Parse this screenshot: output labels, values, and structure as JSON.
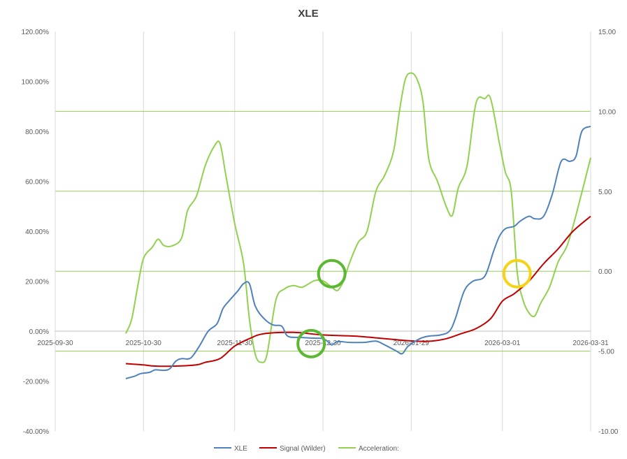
{
  "chart_data": {
    "type": "line",
    "title": "XLE",
    "x_type": "date",
    "xlim": [
      "2025-09-30",
      "2026-03-31"
    ],
    "x_ticks": [
      "2025-09-30",
      "2025-10-30",
      "2025-11-30",
      "2025-12-30",
      "2026-01-29",
      "2026-03-01",
      "2026-03-31"
    ],
    "y_left": {
      "min": -0.4,
      "max": 1.2,
      "ticks": [
        "-40.00%",
        "-20.00%",
        "0.00%",
        "20.00%",
        "40.00%",
        "60.00%",
        "80.00%",
        "100.00%",
        "120.00%"
      ]
    },
    "y_right": {
      "min": -10,
      "max": 15,
      "ticks": [
        "-10.00",
        "-5.00",
        "0.00",
        "5.00",
        "10.00",
        "15.00"
      ],
      "gridlines": [
        -5,
        0,
        5,
        10
      ]
    },
    "grid": true,
    "legend_position": "bottom",
    "series": [
      {
        "name": "XLE",
        "axis": "left",
        "color": "#4f81bd",
        "points": [
          [
            "2025-10-24",
            -0.19
          ],
          [
            "2025-10-27",
            -0.18
          ],
          [
            "2025-10-29",
            -0.17
          ],
          [
            "2025-11-01",
            -0.165
          ],
          [
            "2025-11-03",
            -0.155
          ],
          [
            "2025-11-06",
            -0.157
          ],
          [
            "2025-11-08",
            -0.15
          ],
          [
            "2025-11-10",
            -0.12
          ],
          [
            "2025-11-12",
            -0.11
          ],
          [
            "2025-11-15",
            -0.108
          ],
          [
            "2025-11-18",
            -0.06
          ],
          [
            "2025-11-21",
            0.0
          ],
          [
            "2025-11-24",
            0.03
          ],
          [
            "2025-11-26",
            0.09
          ],
          [
            "2025-11-28",
            0.12
          ],
          [
            "2025-12-01",
            0.16
          ],
          [
            "2025-12-03",
            0.19
          ],
          [
            "2025-12-05",
            0.19
          ],
          [
            "2025-12-07",
            0.1
          ],
          [
            "2025-12-10",
            0.05
          ],
          [
            "2025-12-13",
            0.025
          ],
          [
            "2025-12-16",
            0.02
          ],
          [
            "2025-12-18",
            -0.02
          ],
          [
            "2025-12-22",
            -0.025
          ],
          [
            "2025-12-27",
            -0.028
          ],
          [
            "2025-12-30",
            -0.03
          ],
          [
            "2026-01-01",
            -0.045
          ],
          [
            "2026-01-02",
            -0.055
          ],
          [
            "2026-01-04",
            -0.042
          ],
          [
            "2026-01-08",
            -0.045
          ],
          [
            "2026-01-13",
            -0.045
          ],
          [
            "2026-01-17",
            -0.04
          ],
          [
            "2026-01-20",
            -0.055
          ],
          [
            "2026-01-24",
            -0.08
          ],
          [
            "2026-01-26",
            -0.09
          ],
          [
            "2026-01-28",
            -0.06
          ],
          [
            "2026-02-01",
            -0.03
          ],
          [
            "2026-02-04",
            -0.02
          ],
          [
            "2026-02-08",
            -0.015
          ],
          [
            "2026-02-11",
            0.0
          ],
          [
            "2026-02-13",
            0.05
          ],
          [
            "2026-02-16",
            0.16
          ],
          [
            "2026-02-19",
            0.2
          ],
          [
            "2026-02-23",
            0.22
          ],
          [
            "2026-02-26",
            0.32
          ],
          [
            "2026-02-28",
            0.38
          ],
          [
            "2026-03-02",
            0.41
          ],
          [
            "2026-03-05",
            0.42
          ],
          [
            "2026-03-07",
            0.44
          ],
          [
            "2026-03-10",
            0.46
          ],
          [
            "2026-03-12",
            0.45
          ],
          [
            "2026-03-15",
            0.46
          ],
          [
            "2026-03-18",
            0.55
          ],
          [
            "2026-03-21",
            0.68
          ],
          [
            "2026-03-24",
            0.68
          ],
          [
            "2026-03-26",
            0.7
          ],
          [
            "2026-03-28",
            0.8
          ],
          [
            "2026-03-31",
            0.82
          ]
        ]
      },
      {
        "name": "Signal (Wilder)",
        "axis": "left",
        "color": "#c00000",
        "points": [
          [
            "2025-10-24",
            -0.13
          ],
          [
            "2025-10-30",
            -0.135
          ],
          [
            "2025-11-03",
            -0.14
          ],
          [
            "2025-11-10",
            -0.14
          ],
          [
            "2025-11-17",
            -0.135
          ],
          [
            "2025-11-20",
            -0.125
          ],
          [
            "2025-11-25",
            -0.11
          ],
          [
            "2025-11-30",
            -0.06
          ],
          [
            "2025-12-05",
            -0.03
          ],
          [
            "2025-12-10",
            -0.01
          ],
          [
            "2025-12-20",
            -0.005
          ],
          [
            "2025-12-30",
            -0.015
          ],
          [
            "2026-01-10",
            -0.02
          ],
          [
            "2026-01-20",
            -0.03
          ],
          [
            "2026-01-30",
            -0.04
          ],
          [
            "2026-02-05",
            -0.04
          ],
          [
            "2026-02-10",
            -0.03
          ],
          [
            "2026-02-15",
            -0.01
          ],
          [
            "2026-02-20",
            0.01
          ],
          [
            "2026-02-25",
            0.05
          ],
          [
            "2026-03-01",
            0.12
          ],
          [
            "2026-03-05",
            0.15
          ],
          [
            "2026-03-10",
            0.2
          ],
          [
            "2026-03-15",
            0.27
          ],
          [
            "2026-03-20",
            0.33
          ],
          [
            "2026-03-25",
            0.4
          ],
          [
            "2026-03-31",
            0.46
          ]
        ]
      },
      {
        "name": "Acceleration:",
        "axis": "right",
        "color": "#92d050",
        "points": [
          [
            "2025-10-24",
            -3.9
          ],
          [
            "2025-10-26",
            -3.0
          ],
          [
            "2025-10-28",
            -1.0
          ],
          [
            "2025-10-30",
            0.8
          ],
          [
            "2025-11-02",
            1.5
          ],
          [
            "2025-11-04",
            2.0
          ],
          [
            "2025-11-06",
            1.6
          ],
          [
            "2025-11-09",
            1.6
          ],
          [
            "2025-11-12",
            2.1
          ],
          [
            "2025-11-14",
            3.8
          ],
          [
            "2025-11-17",
            4.7
          ],
          [
            "2025-11-20",
            6.6
          ],
          [
            "2025-11-23",
            7.8
          ],
          [
            "2025-11-25",
            8.0
          ],
          [
            "2025-11-27",
            6.0
          ],
          [
            "2025-11-30",
            3.0
          ],
          [
            "2025-12-03",
            0.5
          ],
          [
            "2025-12-05",
            -3.0
          ],
          [
            "2025-12-07",
            -5.2
          ],
          [
            "2025-12-09",
            -5.7
          ],
          [
            "2025-12-11",
            -5.2
          ],
          [
            "2025-12-14",
            -1.8
          ],
          [
            "2025-12-17",
            -1.1
          ],
          [
            "2025-12-20",
            -0.9
          ],
          [
            "2025-12-23",
            -1.0
          ],
          [
            "2025-12-27",
            -0.6
          ],
          [
            "2025-12-30",
            -0.6
          ],
          [
            "2026-01-02",
            -1.0
          ],
          [
            "2026-01-04",
            -1.2
          ],
          [
            "2026-01-06",
            -0.6
          ],
          [
            "2026-01-08",
            0.5
          ],
          [
            "2026-01-11",
            1.8
          ],
          [
            "2026-01-14",
            2.5
          ],
          [
            "2026-01-17",
            5.0
          ],
          [
            "2026-01-20",
            6.0
          ],
          [
            "2026-01-23",
            7.5
          ],
          [
            "2026-01-25",
            10.0
          ],
          [
            "2026-01-27",
            12.0
          ],
          [
            "2026-01-29",
            12.4
          ],
          [
            "2026-01-31",
            12.0
          ],
          [
            "2026-02-02",
            10.6
          ],
          [
            "2026-02-04",
            7.0
          ],
          [
            "2026-02-07",
            5.6
          ],
          [
            "2026-02-10",
            4.0
          ],
          [
            "2026-02-12",
            3.5
          ],
          [
            "2026-02-14",
            5.2
          ],
          [
            "2026-02-17",
            6.6
          ],
          [
            "2026-02-20",
            10.5
          ],
          [
            "2026-02-23",
            10.8
          ],
          [
            "2026-02-25",
            10.8
          ],
          [
            "2026-02-28",
            8.0
          ],
          [
            "2026-03-02",
            6.2
          ],
          [
            "2026-03-04",
            5.0
          ],
          [
            "2026-03-06",
            0.0
          ],
          [
            "2026-03-08",
            -1.8
          ],
          [
            "2026-03-10",
            -2.6
          ],
          [
            "2026-03-12",
            -2.8
          ],
          [
            "2026-03-14",
            -2.0
          ],
          [
            "2026-03-17",
            -1.0
          ],
          [
            "2026-03-20",
            0.6
          ],
          [
            "2026-03-23",
            1.6
          ],
          [
            "2026-03-26",
            3.5
          ],
          [
            "2026-03-31",
            7.1
          ]
        ]
      }
    ]
  },
  "annotations": {
    "circles": [
      {
        "name": "green-circle-signal-cross",
        "color": "#5cb833",
        "x": "2025-12-26",
        "y": -0.05,
        "axis": "left"
      },
      {
        "name": "green-circle-acceleration-cross",
        "color": "#5cb833",
        "x": "2026-01-02",
        "y": 0.23,
        "axis": "left"
      },
      {
        "name": "yellow-circle-acceleration-cross",
        "color": "#f5d318",
        "x": "2026-03-06",
        "y": 0.23,
        "axis": "left"
      }
    ]
  }
}
